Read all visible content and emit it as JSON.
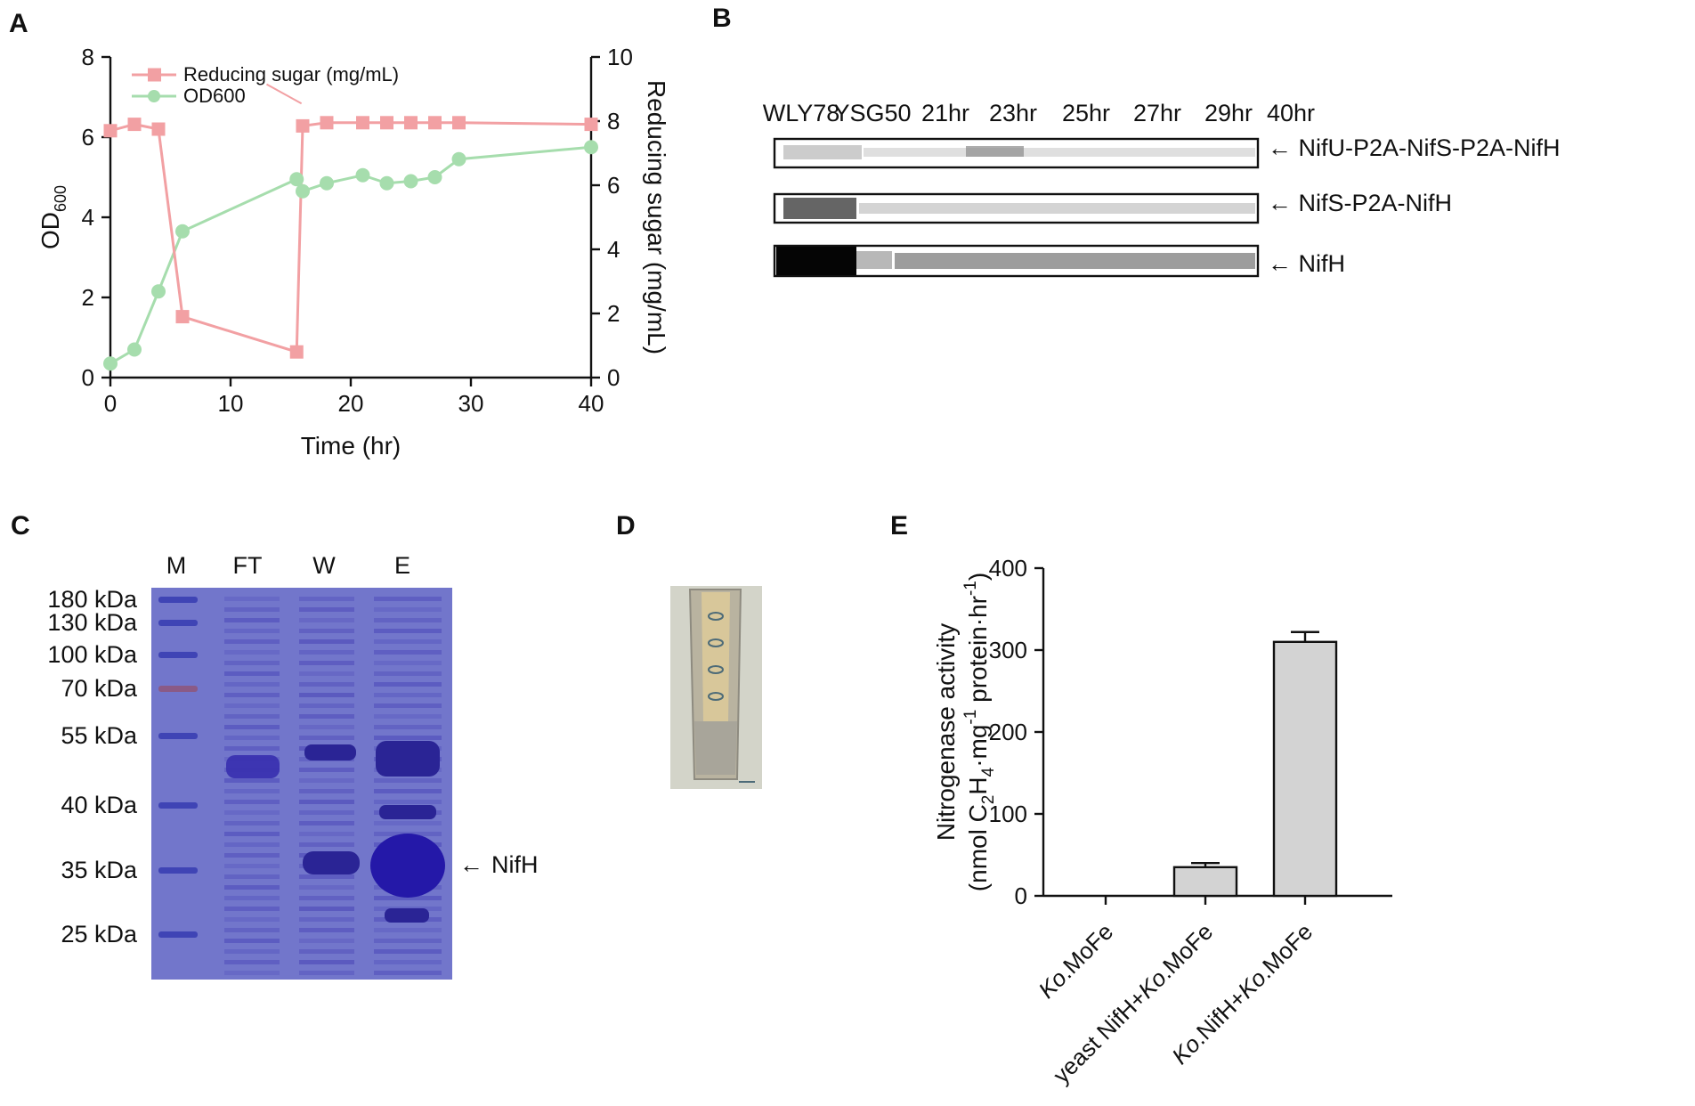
{
  "panels": {
    "A": "A",
    "B": "B",
    "C": "C",
    "D": "D",
    "E": "E"
  },
  "panelA": {
    "xlabel": "Time (hr)",
    "ylabel_left_main": "OD",
    "ylabel_left_sub": "600",
    "ylabel_right": "Reducing sugar (mg/mL)",
    "xticks": [
      "0",
      "10",
      "20",
      "30",
      "40"
    ],
    "yticks_left": [
      "0",
      "2",
      "4",
      "6",
      "8"
    ],
    "yticks_right": [
      "0",
      "2",
      "4",
      "6",
      "8",
      "10"
    ],
    "legend": [
      "Reducing sugar (mg/mL)",
      "OD600"
    ]
  },
  "panelB": {
    "lanes": [
      "WLY78",
      "YSG50",
      "21hr",
      "23hr",
      "25hr",
      "27hr",
      "29hr",
      "40hr"
    ],
    "bands": [
      "NifU-P2A-NifS-P2A-NifH",
      "NifS-P2A-NifH",
      "NifH"
    ],
    "arrow": "←"
  },
  "panelC": {
    "lanes": [
      "M",
      "FT",
      "W",
      "E"
    ],
    "markers": [
      "180 kDa",
      "130 kDa",
      "100 kDa",
      "70 kDa",
      "55 kDa",
      "40 kDa",
      "35 kDa",
      "25 kDa"
    ],
    "marker_values_kda": [
      180,
      130,
      100,
      70,
      55,
      40,
      35,
      25
    ],
    "band_label": "NifH",
    "arrow": "←"
  },
  "panelE": {
    "ylabel_line1": "Nitrogenase activity",
    "ylabel_line2_parts": [
      "(nmol C",
      "2",
      "H",
      "4",
      "·mg",
      "-1",
      " protein·hr",
      "-1",
      ")"
    ],
    "yticks": [
      "0",
      "100",
      "200",
      "300",
      "400"
    ]
  },
  "colors": {
    "sugar": "#f2a0a3",
    "od": "#a6ddad",
    "bar": "#d3d3d3",
    "gel_bg": "#6f72c8",
    "gel_band": "#3a32b0"
  },
  "chart_data": [
    {
      "type": "line",
      "title": "",
      "xlabel": "Time (hr)",
      "ylabel": "OD600",
      "y2label": "Reducing sugar (mg/mL)",
      "xlim": [
        0,
        40
      ],
      "ylim": [
        0,
        8
      ],
      "y2lim": [
        0,
        10
      ],
      "series": [
        {
          "name": "Reducing sugar (mg/mL)",
          "axis": "right",
          "x": [
            0,
            2,
            4,
            6,
            15.5,
            16,
            18,
            21,
            23,
            25,
            27,
            29,
            40
          ],
          "values": [
            7.7,
            7.9,
            7.75,
            1.9,
            0.8,
            7.85,
            7.95,
            7.95,
            7.95,
            7.95,
            7.95,
            7.95,
            7.9
          ]
        },
        {
          "name": "OD600",
          "axis": "left",
          "x": [
            0,
            2,
            4,
            6,
            15.5,
            16,
            18,
            21,
            23,
            25,
            27,
            29,
            40
          ],
          "values": [
            0.35,
            0.7,
            2.15,
            3.65,
            4.95,
            4.65,
            4.85,
            5.05,
            4.85,
            4.9,
            5.0,
            5.45,
            5.75
          ]
        }
      ]
    },
    {
      "type": "bar",
      "title": "",
      "xlabel": "",
      "ylabel": "Nitrogenase activity (nmol C2H4·mg-1 protein·hr-1)",
      "ylim": [
        0,
        400
      ],
      "categories": [
        {
          "parts": [
            {
              "t": "Ko",
              "i": true
            },
            {
              "t": ".MoFe",
              "i": false
            }
          ]
        },
        {
          "parts": [
            {
              "t": "yeast NifH+",
              "i": false
            },
            {
              "t": "Ko",
              "i": true
            },
            {
              "t": ".MoFe",
              "i": false
            }
          ]
        },
        {
          "parts": [
            {
              "t": "Ko",
              "i": true
            },
            {
              "t": ".NifH+",
              "i": false
            },
            {
              "t": "Ko",
              "i": true
            },
            {
              "t": ".MoFe",
              "i": false
            }
          ]
        }
      ],
      "values": [
        0,
        35,
        310
      ],
      "errors": [
        0,
        5,
        12
      ]
    }
  ]
}
